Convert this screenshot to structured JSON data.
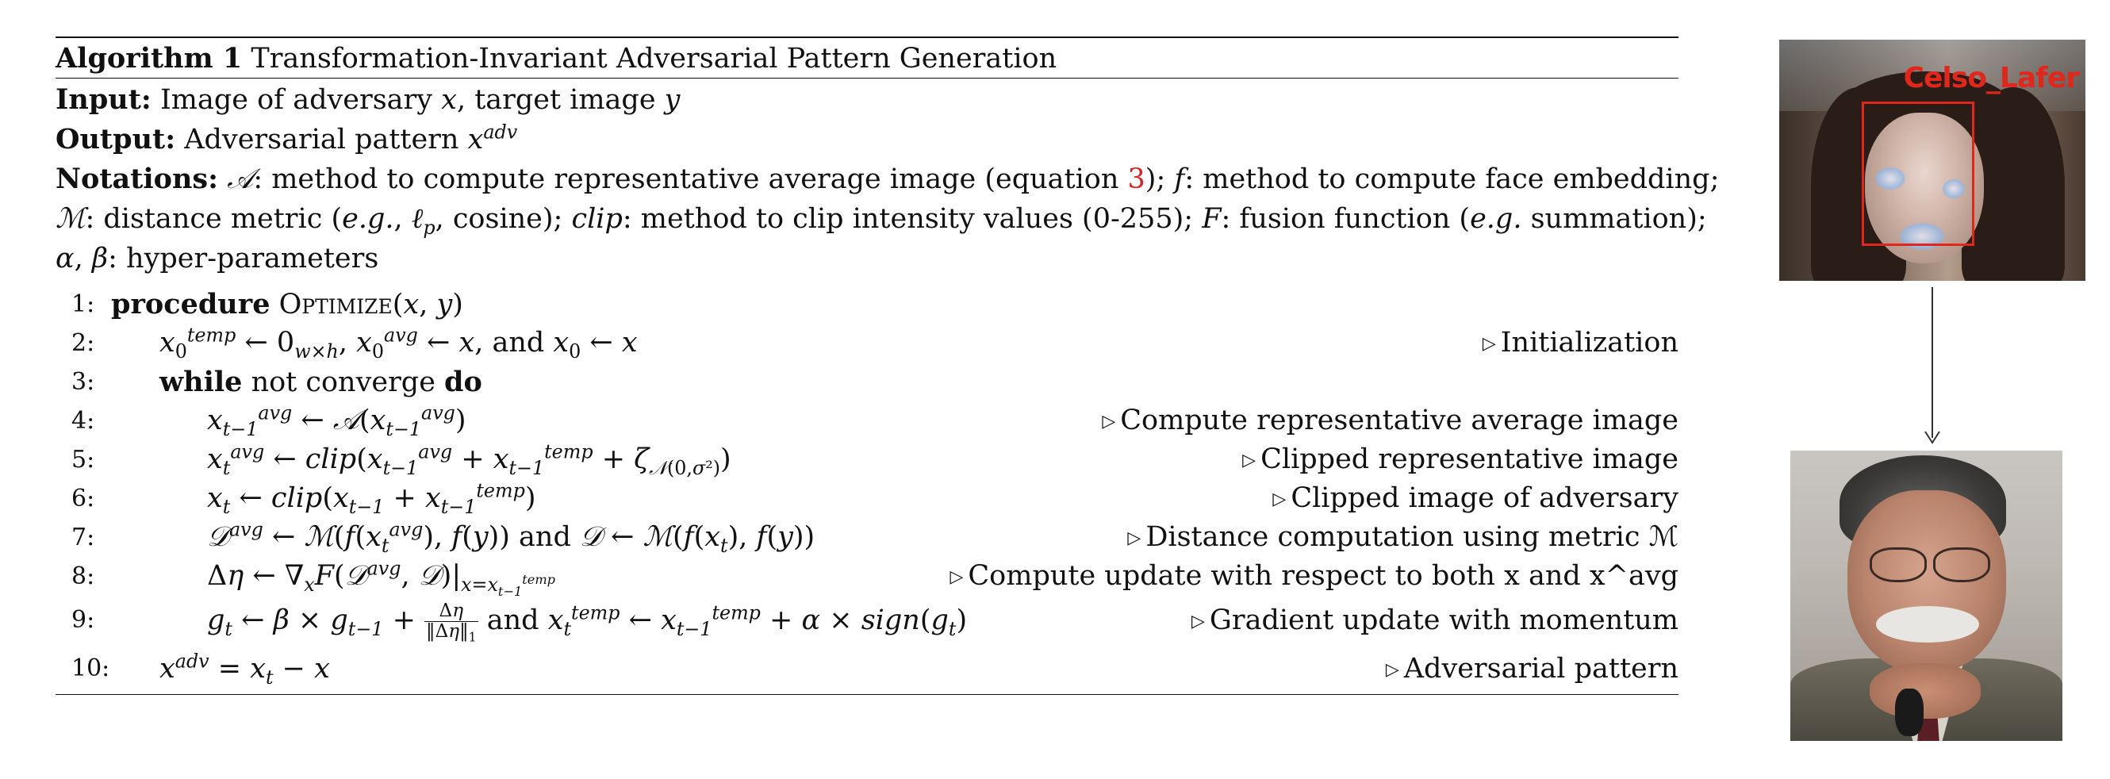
{
  "algorithm": {
    "title_bold": "Algorithm 1",
    "title_rest": "Transformation-Invariant Adversarial Pattern Generation",
    "input_label": "Input:",
    "input_text": "Image of adversary x, target image y",
    "output_label": "Output:",
    "output_text": "Adversarial pattern x^adv",
    "notations_label": "Notations:",
    "notations_line1": "𝒜: method to compute representative average image (equation 3); f: method to compute face embedding;",
    "notations_line2": "ℳ: distance metric (e.g., ℓp, cosine); clip: method to clip intensity values (0-255); F: fusion function (e.g. summation);",
    "notations_line3": "α, β: hyper-parameters",
    "equation_ref": "3",
    "steps": [
      {
        "num": "1:",
        "code": "procedure OPTIMIZE(x, y)",
        "comment": ""
      },
      {
        "num": "2:",
        "code": "x0^temp ← 0w×h, x0^avg ← x, and x0 ← x",
        "comment": "Initialization"
      },
      {
        "num": "3:",
        "code": "while not converge do",
        "comment": ""
      },
      {
        "num": "4:",
        "code": "x(t−1)^avg ← 𝒜(x(t−1)^avg)",
        "comment": "Compute representative average image"
      },
      {
        "num": "5:",
        "code": "xt^avg ← clip(x(t−1)^avg + x(t−1)^temp + ζ𝒩(0,σ²))",
        "comment": "Clipped representative image"
      },
      {
        "num": "6:",
        "code": "xt ← clip(x(t−1) + x(t−1)^temp)",
        "comment": "Clipped image of adversary"
      },
      {
        "num": "7:",
        "code": "𝒟^avg ← ℳ(f(xt^avg), f(y)) and 𝒟 ← ℳ(f(xt), f(y))",
        "comment": "Distance computation using metric ℳ"
      },
      {
        "num": "8:",
        "code": "Δη ← ∇x F(𝒟^avg, 𝒟)|x=x(t−1)^temp",
        "comment": "Compute update with respect to both x and x^avg"
      },
      {
        "num": "9:",
        "code": "gt ← β × g(t−1) + Δη/‖Δη‖1 and xt^temp ← x(t−1)^temp + α × sign(gt)",
        "comment": "Gradient update with momentum"
      },
      {
        "num": "10:",
        "code": "x^adv = xt − x",
        "comment": "Adversarial pattern"
      }
    ]
  },
  "figure": {
    "detection_label": "Celso_Lafer",
    "box_color": "#e1261c"
  }
}
